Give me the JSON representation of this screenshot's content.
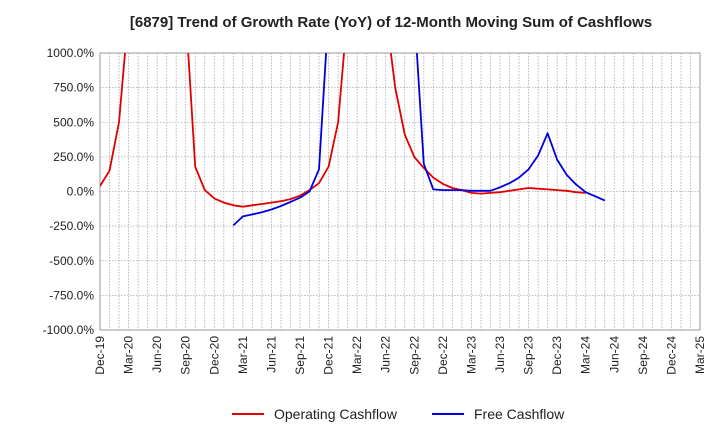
{
  "chart_data": {
    "type": "line",
    "title": "[6879]  Trend of Growth Rate (YoY) of 12-Month Moving Sum of Cashflows",
    "xlabel": "",
    "ylabel": "",
    "ylim": [
      -1000,
      1000
    ],
    "y_ticks": [
      "1000.0%",
      "750.0%",
      "500.0%",
      "250.0%",
      "0.0%",
      "-250.0%",
      "-500.0%",
      "-750.0%",
      "-1000.0%"
    ],
    "x_ticks": [
      "Dec-19",
      "Mar-20",
      "Jun-20",
      "Sep-20",
      "Dec-20",
      "Mar-21",
      "Jun-21",
      "Sep-21",
      "Dec-21",
      "Mar-22",
      "Jun-22",
      "Sep-22",
      "Dec-22",
      "Mar-23",
      "Jun-23",
      "Sep-23",
      "Dec-23",
      "Mar-24",
      "Jun-24",
      "Sep-24",
      "Dec-24",
      "Mar-25"
    ],
    "grid": true,
    "legend_position": "bottom",
    "series": [
      {
        "name": "Operating Cashflow",
        "color": "#e00000",
        "points": [
          [
            "Dec-19",
            40
          ],
          [
            "Jan-20",
            150
          ],
          [
            "Feb-20",
            500
          ],
          [
            "Mar-20",
            1300
          ],
          [
            "Sep-20",
            1300
          ],
          [
            "Oct-20",
            180
          ],
          [
            "Nov-20",
            10
          ],
          [
            "Dec-20",
            -50
          ],
          [
            "Jan-21",
            -80
          ],
          [
            "Feb-21",
            -100
          ],
          [
            "Mar-21",
            -110
          ],
          [
            "Apr-21",
            -100
          ],
          [
            "May-21",
            -90
          ],
          [
            "Jun-21",
            -80
          ],
          [
            "Jul-21",
            -70
          ],
          [
            "Aug-21",
            -55
          ],
          [
            "Sep-21",
            -30
          ],
          [
            "Oct-21",
            10
          ],
          [
            "Nov-21",
            60
          ],
          [
            "Dec-21",
            180
          ],
          [
            "Jan-22",
            500
          ],
          [
            "Feb-22",
            1300
          ],
          [
            "Jun-22",
            1300
          ],
          [
            "Jul-22",
            750
          ],
          [
            "Aug-22",
            410
          ],
          [
            "Sep-22",
            250
          ],
          [
            "Oct-22",
            170
          ],
          [
            "Nov-22",
            100
          ],
          [
            "Dec-22",
            55
          ],
          [
            "Jan-23",
            25
          ],
          [
            "Feb-23",
            10
          ],
          [
            "Mar-23",
            -10
          ],
          [
            "Apr-23",
            -15
          ],
          [
            "May-23",
            -10
          ],
          [
            "Jun-23",
            -5
          ],
          [
            "Jul-23",
            5
          ],
          [
            "Aug-23",
            15
          ],
          [
            "Sep-23",
            25
          ],
          [
            "Oct-23",
            20
          ],
          [
            "Nov-23",
            15
          ],
          [
            "Dec-23",
            10
          ],
          [
            "Jan-24",
            5
          ],
          [
            "Feb-24",
            -5
          ],
          [
            "Mar-24",
            -10
          ]
        ]
      },
      {
        "name": "Free Cashflow",
        "color": "#0000dd",
        "points": [
          [
            "Feb-21",
            -245
          ],
          [
            "Mar-21",
            -180
          ],
          [
            "Apr-21",
            -165
          ],
          [
            "May-21",
            -150
          ],
          [
            "Jun-21",
            -130
          ],
          [
            "Jul-21",
            -105
          ],
          [
            "Aug-21",
            -75
          ],
          [
            "Sep-21",
            -45
          ],
          [
            "Oct-21",
            0
          ],
          [
            "Nov-21",
            160
          ],
          [
            "Dec-21",
            1300
          ],
          [
            "Sep-22",
            1300
          ],
          [
            "Oct-22",
            200
          ],
          [
            "Nov-22",
            15
          ],
          [
            "Dec-22",
            10
          ],
          [
            "Jan-23",
            10
          ],
          [
            "Feb-23",
            10
          ],
          [
            "Mar-23",
            5
          ],
          [
            "Apr-23",
            5
          ],
          [
            "May-23",
            5
          ],
          [
            "Jun-23",
            30
          ],
          [
            "Jul-23",
            60
          ],
          [
            "Aug-23",
            100
          ],
          [
            "Sep-23",
            160
          ],
          [
            "Oct-23",
            260
          ],
          [
            "Nov-23",
            420
          ],
          [
            "Dec-23",
            230
          ],
          [
            "Jan-24",
            120
          ],
          [
            "Feb-24",
            50
          ],
          [
            "Mar-24",
            -5
          ],
          [
            "Apr-24",
            -35
          ],
          [
            "May-24",
            -65
          ]
        ]
      }
    ]
  }
}
